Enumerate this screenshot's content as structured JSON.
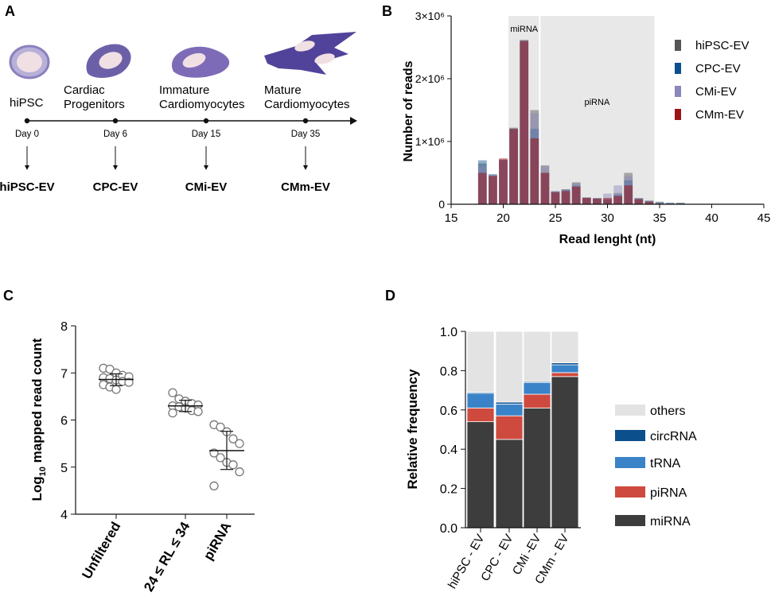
{
  "colors": {
    "hipsc": "#555555",
    "cpc": "#0b4f8f",
    "cmi": "#8a87bb",
    "cmm": "#9b1418",
    "mirna": "#3d3d3d",
    "pirna": "#cf4a3e",
    "trna": "#3b83c8",
    "circrna": "#0c4f8d",
    "others": "#e3e3e3",
    "cell": "#7a6db0",
    "cell_dark": "#4b3d8e",
    "nucleus": "#f0e0e4"
  },
  "panel_a": {
    "label": "A",
    "stages": [
      {
        "name": "hiPSC",
        "day": "Day 0",
        "ev": "hiPSC-EV"
      },
      {
        "name": "Cardiac\nProgenitors",
        "day": "Day 6",
        "ev": "CPC-EV"
      },
      {
        "name": "Immature\nCardiomyocytes",
        "day": "Day 15",
        "ev": "CMi-EV"
      },
      {
        "name": "Mature\nCardiomyocytes",
        "day": "Day 35",
        "ev": "CMm-EV"
      }
    ]
  },
  "chart_data": [
    {
      "panel": "B",
      "type": "bar",
      "overlay": true,
      "xlabel": "Read lenght (nt)",
      "ylabel": "Number of reads",
      "xlim": [
        15,
        45
      ],
      "ylim": [
        0,
        3000000
      ],
      "xticks": [
        "15",
        "20",
        "25",
        "30",
        "35",
        "40",
        "45"
      ],
      "yticks": [
        "0",
        "1×10⁶",
        "2×10⁶",
        "3×10⁶"
      ],
      "regions": [
        {
          "label": "miRNA",
          "x0": 20.5,
          "x1": 23.5
        },
        {
          "label": "piRNA",
          "x0": 23.5,
          "x1": 34.5
        }
      ],
      "x": [
        18,
        19,
        20,
        21,
        22,
        23,
        24,
        25,
        26,
        27,
        28,
        29,
        30,
        31,
        32,
        33,
        34,
        35,
        36,
        37
      ],
      "series": [
        {
          "name": "hiPSC-EV",
          "values": [
            650000,
            460000,
            700000,
            1220000,
            2620000,
            1500000,
            620000,
            210000,
            240000,
            350000,
            110000,
            100000,
            80000,
            180000,
            500000,
            100000,
            60000,
            40000,
            25000,
            25000
          ]
        },
        {
          "name": "CPC-EV",
          "values": [
            700000,
            480000,
            710000,
            1200000,
            2600000,
            1200000,
            500000,
            200000,
            230000,
            300000,
            100000,
            90000,
            70000,
            150000,
            380000,
            90000,
            50000,
            30000,
            20000,
            20000
          ]
        },
        {
          "name": "CMi-EV",
          "values": [
            600000,
            470000,
            700000,
            1210000,
            2610000,
            1450000,
            600000,
            200000,
            230000,
            340000,
            110000,
            100000,
            170000,
            300000,
            450000,
            100000,
            55000,
            20000,
            15000,
            10000
          ]
        },
        {
          "name": "CMm-EV",
          "values": [
            500000,
            450000,
            730000,
            1200000,
            2600000,
            1050000,
            500000,
            190000,
            210000,
            280000,
            100000,
            90000,
            100000,
            130000,
            300000,
            80000,
            40000,
            10000,
            5000,
            5000
          ]
        }
      ]
    },
    {
      "panel": "C",
      "type": "scatter",
      "ylabel_main": "Log",
      "ylabel_sub": "10",
      "ylabel_rest": " mapped read count",
      "ylim": [
        4,
        8
      ],
      "yticks": [
        "4",
        "5",
        "6",
        "7",
        "8"
      ],
      "categories": [
        "Unfiltered",
        "24 ≤ RL ≤ 34",
        "piRNA"
      ],
      "points": [
        [
          7.1,
          7.08,
          7.0,
          6.95,
          6.92,
          6.9,
          6.88,
          6.85,
          6.82,
          6.8,
          6.75,
          6.7,
          6.65
        ],
        [
          6.58,
          6.45,
          6.4,
          6.35,
          6.32,
          6.3,
          6.28,
          6.25,
          6.2,
          6.18,
          6.15
        ],
        [
          5.9,
          5.85,
          5.75,
          5.6,
          5.5,
          5.3,
          5.2,
          5.1,
          5.05,
          4.9,
          4.6
        ]
      ],
      "means": [
        6.86,
        6.3,
        5.35
      ],
      "sd_low": [
        6.73,
        6.18,
        4.95
      ],
      "sd_high": [
        6.98,
        6.42,
        5.76
      ]
    },
    {
      "panel": "D",
      "type": "bar",
      "stacked": true,
      "ylabel": "Relative frequency",
      "ylim": [
        0,
        1.0
      ],
      "yticks": [
        "0.0",
        "0.2",
        "0.4",
        "0.6",
        "0.8",
        "1.0"
      ],
      "categories": [
        "hiPSC - EV",
        "CPC - EV",
        "CMi -EV",
        "CMm - EV"
      ],
      "series": [
        {
          "name": "miRNA",
          "values": [
            0.54,
            0.45,
            0.61,
            0.77
          ]
        },
        {
          "name": "piRNA",
          "values": [
            0.07,
            0.12,
            0.07,
            0.02
          ]
        },
        {
          "name": "tRNA",
          "values": [
            0.075,
            0.06,
            0.06,
            0.04
          ]
        },
        {
          "name": "circRNA",
          "values": [
            0.005,
            0.01,
            0.005,
            0.01
          ]
        },
        {
          "name": "others",
          "values": [
            0.31,
            0.36,
            0.255,
            0.16
          ]
        }
      ],
      "legend_order": [
        "others",
        "circRNA",
        "tRNA",
        "piRNA",
        "miRNA"
      ]
    }
  ],
  "panel_labels": {
    "b": "B",
    "c": "C",
    "d": "D"
  }
}
